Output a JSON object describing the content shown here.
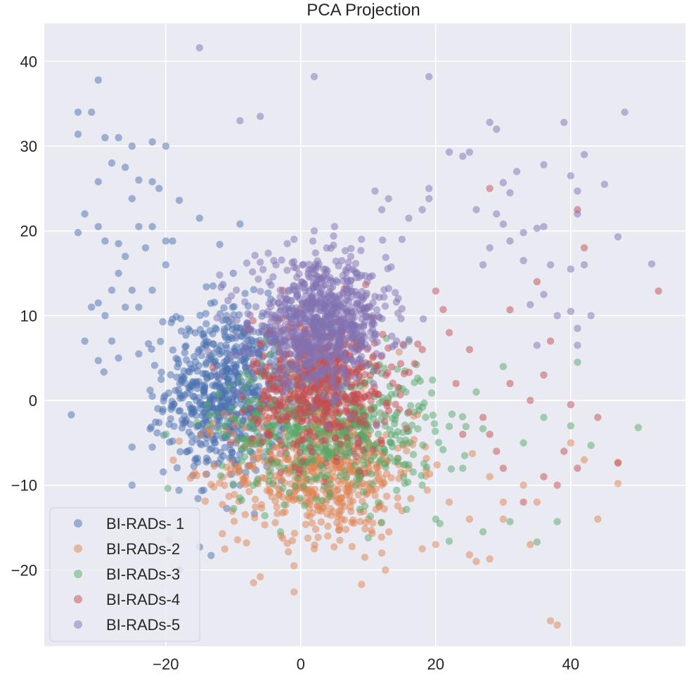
{
  "chart_data": {
    "type": "scatter",
    "title": "PCA Projection",
    "xlabel": "",
    "ylabel": "",
    "xlim": [
      -38,
      57
    ],
    "ylim": [
      -29,
      44.5
    ],
    "x_ticks": [
      -20,
      0,
      20,
      40
    ],
    "y_ticks": [
      -20,
      -10,
      0,
      10,
      20,
      30,
      40
    ],
    "x_tick_labels": [
      "−20",
      "0",
      "20",
      "40"
    ],
    "y_tick_labels": [
      "−20",
      "−10",
      "0",
      "10",
      "20",
      "30",
      "40"
    ],
    "grid": true,
    "background": "#eaeaf2",
    "legend_position": "bottom-left",
    "marker_alpha": 0.5,
    "series": [
      {
        "name": "BI-RADs-1",
        "legend_label": "BI-RADs- 1",
        "color": "#4c72b0",
        "cluster_center": [
          -11,
          1
        ],
        "cluster_spread": [
          4.5,
          5
        ],
        "n_cluster_points": 650,
        "points": [
          [
            -34,
            -1.7
          ],
          [
            -30,
            37.8
          ],
          [
            -33,
            34
          ],
          [
            -31,
            34
          ],
          [
            -29,
            31
          ],
          [
            -33,
            31.4
          ],
          [
            -30,
            25.8
          ],
          [
            -32,
            22
          ],
          [
            -27,
            31
          ],
          [
            -28,
            28
          ],
          [
            -25,
            30
          ],
          [
            -22,
            30.5
          ],
          [
            -20,
            30
          ],
          [
            -26,
            27.5
          ],
          [
            -24,
            26
          ],
          [
            -22,
            25.8
          ],
          [
            -21,
            25
          ],
          [
            -25,
            23.8
          ],
          [
            -18,
            23.6
          ],
          [
            -30,
            20.5
          ],
          [
            -33,
            19.8
          ],
          [
            -29,
            18.8
          ],
          [
            -27,
            18.5
          ],
          [
            -24,
            20.5
          ],
          [
            -22,
            20.5
          ],
          [
            -20,
            18.8
          ],
          [
            -19,
            18.8
          ],
          [
            -23,
            18
          ],
          [
            -20,
            16
          ],
          [
            -26,
            17
          ],
          [
            -25,
            13
          ],
          [
            -27,
            15
          ],
          [
            -28,
            13
          ],
          [
            -30,
            11.5
          ],
          [
            -31,
            11
          ],
          [
            -29,
            10
          ],
          [
            -26,
            11
          ],
          [
            -24,
            11
          ],
          [
            -22,
            13
          ],
          [
            -28,
            7
          ],
          [
            -32,
            7
          ],
          [
            -27,
            5
          ],
          [
            -30,
            4.7
          ],
          [
            -24,
            5.5
          ],
          [
            -19,
            9.6
          ],
          [
            -12,
            18.4
          ],
          [
            -13,
            13.5
          ],
          [
            -14,
            13.4
          ],
          [
            -10,
            15
          ],
          [
            -9,
            20.8
          ],
          [
            -15,
            21.5
          ],
          [
            -11,
            10
          ],
          [
            -22,
            0.5
          ],
          [
            -21,
            -2.6
          ],
          [
            -19,
            -4.8
          ],
          [
            -22,
            -5.5
          ],
          [
            -25,
            -5.5
          ],
          [
            -25,
            -10
          ],
          [
            -15,
            -17.3
          ],
          [
            -7,
            -7
          ],
          [
            -6,
            -5
          ],
          [
            -9,
            -10
          ]
        ]
      },
      {
        "name": "BI-RADs-2",
        "legend_label": "BI-RADs-2",
        "color": "#dd8452",
        "cluster_center": [
          3,
          -8
        ],
        "cluster_spread": [
          7,
          4
        ],
        "n_cluster_points": 620,
        "points": [
          [
            -18,
            -4.8
          ],
          [
            -6,
            -20.8
          ],
          [
            -7,
            -21.5
          ],
          [
            -1,
            -22.6
          ],
          [
            -1,
            -19.5
          ],
          [
            2,
            -17.5
          ],
          [
            4,
            -16
          ],
          [
            9,
            -21.7
          ],
          [
            12,
            -18
          ],
          [
            18,
            -17.5
          ],
          [
            20,
            -17
          ],
          [
            25,
            -18.2
          ],
          [
            26,
            -19
          ],
          [
            28,
            -18.7
          ],
          [
            30,
            -14
          ],
          [
            34,
            -17
          ],
          [
            37,
            -26
          ],
          [
            38,
            -26.5
          ],
          [
            44,
            -14
          ],
          [
            47,
            -7.3
          ],
          [
            47,
            -9.8
          ],
          [
            40,
            -5
          ],
          [
            42,
            -7
          ],
          [
            30,
            -12
          ],
          [
            25,
            -14
          ],
          [
            35,
            -12
          ],
          [
            33,
            -10
          ],
          [
            28,
            -9
          ],
          [
            22,
            -12
          ],
          [
            15,
            -13
          ],
          [
            10,
            -14
          ]
        ]
      },
      {
        "name": "BI-RADs-3",
        "legend_label": "BI-RADs-3",
        "color": "#55a868",
        "cluster_center": [
          4,
          -3
        ],
        "cluster_spread": [
          8,
          4
        ],
        "n_cluster_points": 540,
        "points": [
          [
            50,
            -3.2
          ],
          [
            43,
            -5.3
          ],
          [
            41,
            4.5
          ],
          [
            40,
            -3
          ],
          [
            38,
            -14.3
          ],
          [
            35,
            -16.7
          ],
          [
            31,
            -14.3
          ],
          [
            27,
            -15.5
          ],
          [
            22,
            -16.6
          ],
          [
            20,
            -14
          ],
          [
            12,
            -14.4
          ],
          [
            10,
            -16.2
          ],
          [
            -3,
            -15.5
          ],
          [
            -9,
            -11.5
          ],
          [
            26,
            1
          ],
          [
            30,
            4
          ],
          [
            33,
            -5
          ],
          [
            36,
            -2
          ],
          [
            24,
            -8
          ],
          [
            18,
            -10
          ]
        ]
      },
      {
        "name": "BI-RADs-4",
        "legend_label": "BI-RADs-4",
        "color": "#c44e52",
        "cluster_center": [
          3,
          2
        ],
        "cluster_spread": [
          5,
          4
        ],
        "n_cluster_points": 620,
        "points": [
          [
            53,
            12.9
          ],
          [
            42,
            18
          ],
          [
            41,
            22.5
          ],
          [
            35,
            14
          ],
          [
            28,
            25
          ],
          [
            31,
            10.7
          ],
          [
            37,
            7
          ],
          [
            36,
            3
          ],
          [
            40,
            -0.5
          ],
          [
            44,
            -2
          ],
          [
            47,
            -7.4
          ],
          [
            41,
            -8
          ],
          [
            38,
            -10
          ],
          [
            33,
            -12
          ],
          [
            30,
            -8
          ],
          [
            28,
            -4
          ],
          [
            25,
            6
          ],
          [
            22,
            8
          ],
          [
            20,
            12.9
          ],
          [
            18,
            6
          ],
          [
            27,
            -2
          ],
          [
            24,
            -4
          ],
          [
            34,
            0
          ],
          [
            39,
            -6
          ],
          [
            23,
            2
          ],
          [
            31,
            2
          ],
          [
            29,
            -6
          ],
          [
            36,
            -9
          ]
        ]
      },
      {
        "name": "BI-RADs-5",
        "legend_label": "BI-RADs-5",
        "color": "#8172b2",
        "cluster_center": [
          3,
          9
        ],
        "cluster_spread": [
          5,
          3.5
        ],
        "n_cluster_points": 800,
        "points": [
          [
            -15,
            41.6
          ],
          [
            2,
            38.2
          ],
          [
            19,
            38.2
          ],
          [
            48,
            34
          ],
          [
            -9,
            33
          ],
          [
            -6,
            33.5
          ],
          [
            28,
            32.8
          ],
          [
            29,
            32
          ],
          [
            39,
            32.8
          ],
          [
            22,
            29.3
          ],
          [
            25,
            29.3
          ],
          [
            24,
            28.8
          ],
          [
            42,
            29
          ],
          [
            32,
            27
          ],
          [
            36,
            27.8
          ],
          [
            30,
            25.7
          ],
          [
            31,
            24.5
          ],
          [
            40,
            26.5
          ],
          [
            45,
            25.5
          ],
          [
            41,
            24.7
          ],
          [
            13,
            23.8
          ],
          [
            11,
            24.7
          ],
          [
            12,
            22.5
          ],
          [
            19,
            25
          ],
          [
            19,
            23.8
          ],
          [
            26,
            22.5
          ],
          [
            29,
            22
          ],
          [
            18,
            22.5
          ],
          [
            41,
            22
          ],
          [
            16,
            21.5
          ],
          [
            15,
            19
          ],
          [
            9,
            19
          ],
          [
            5,
            20.5
          ],
          [
            2,
            20
          ],
          [
            -2,
            18.5
          ],
          [
            -1,
            19
          ],
          [
            -4,
            16.5
          ],
          [
            -6,
            16.3
          ],
          [
            -8,
            16.2
          ],
          [
            30,
            20.8
          ],
          [
            33,
            19.8
          ],
          [
            35,
            20.3
          ],
          [
            36,
            20.5
          ],
          [
            31,
            18.8
          ],
          [
            28,
            18
          ],
          [
            27,
            16
          ],
          [
            33,
            16.5
          ],
          [
            37,
            16
          ],
          [
            40,
            15.5
          ],
          [
            42,
            16
          ],
          [
            47,
            19.3
          ],
          [
            52,
            16.1
          ],
          [
            36,
            12.5
          ],
          [
            38,
            10
          ],
          [
            40,
            10.5
          ],
          [
            43,
            10
          ],
          [
            41,
            8.5
          ],
          [
            41,
            6.5
          ],
          [
            35,
            6.5
          ],
          [
            34,
            11.3
          ]
        ]
      }
    ]
  }
}
